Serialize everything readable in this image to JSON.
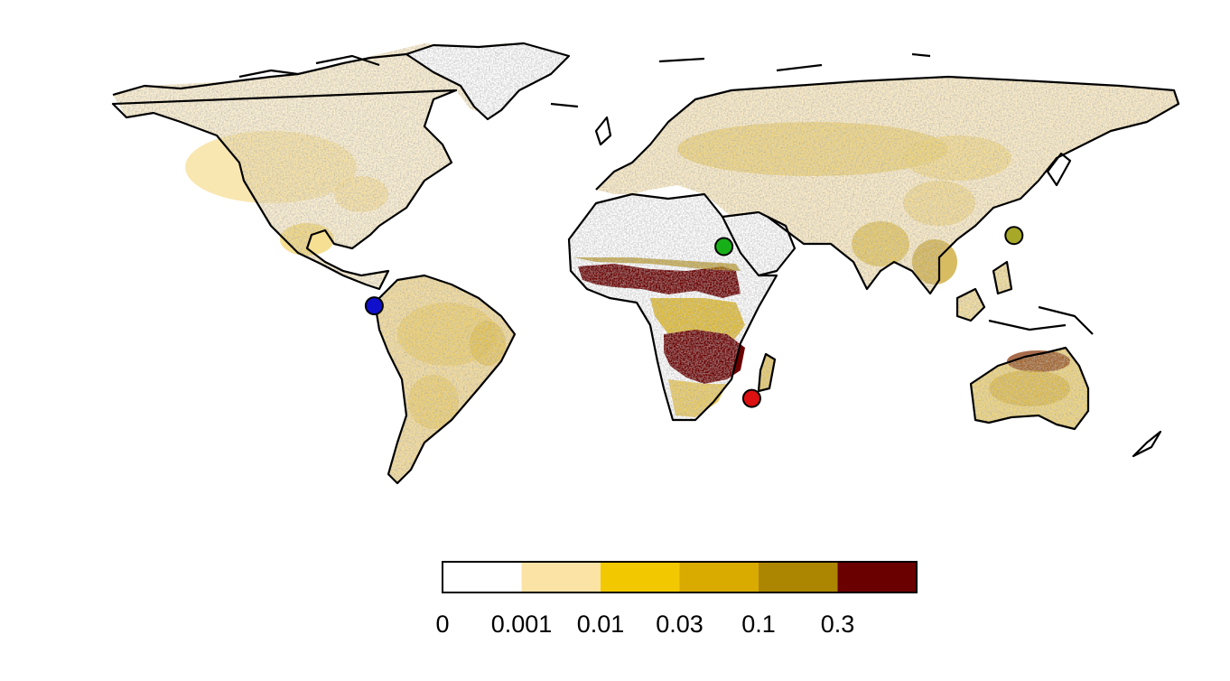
{
  "legend": {
    "bins": [
      {
        "label": "0",
        "color": "#ffffff"
      },
      {
        "label": "0.001",
        "color": "#fbe3a6"
      },
      {
        "label": "0.01",
        "color": "#f2c900"
      },
      {
        "label": "0.03",
        "color": "#d9ab00"
      },
      {
        "label": "0.1",
        "color": "#ad8600"
      },
      {
        "label": "0.3",
        "color": "#6b0000"
      }
    ]
  },
  "markers": [
    {
      "name": "south-america-site",
      "color": "#1010cc",
      "lon": -74,
      "lat": 4
    },
    {
      "name": "sahara-site",
      "color": "#18b018",
      "lon": 14,
      "lat": 20
    },
    {
      "name": "india-site",
      "color": "#a8a828",
      "lon": 87,
      "lat": 23
    },
    {
      "name": "southern-africa-site",
      "color": "#dd1111",
      "lon": 21,
      "lat": -21
    }
  ],
  "colors": {
    "coastline": "#000000",
    "background": "#ffffff"
  }
}
